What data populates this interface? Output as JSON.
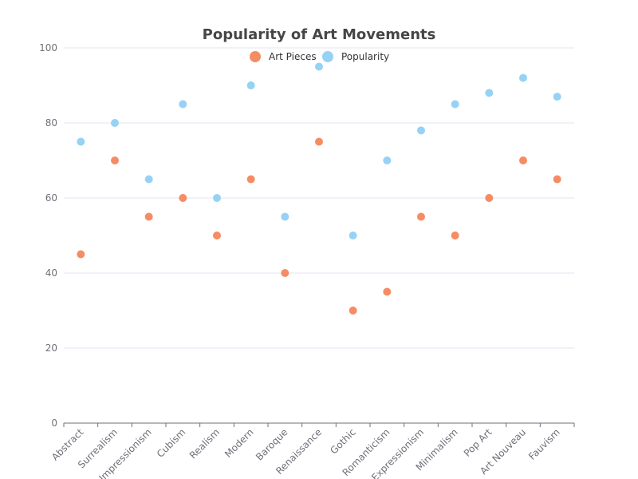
{
  "chart_data": {
    "type": "scatter",
    "title": "Popularity of Art Movements",
    "xlabel": "",
    "ylabel": "",
    "categories": [
      "Abstract",
      "Surrealism",
      "Impressionism",
      "Cubism",
      "Realism",
      "Modern",
      "Baroque",
      "Renaissance",
      "Gothic",
      "Romanticism",
      "Expressionism",
      "Minimalism",
      "Pop Art",
      "Art Nouveau",
      "Fauvism"
    ],
    "ylim": [
      0,
      100
    ],
    "yticks": [
      0,
      20,
      40,
      60,
      80,
      100
    ],
    "grid": true,
    "legend_position": "top-center",
    "series": [
      {
        "name": "Art Pieces",
        "color": "#f58c64",
        "values": [
          45,
          70,
          55,
          60,
          50,
          65,
          40,
          75,
          30,
          35,
          55,
          50,
          60,
          70,
          65
        ]
      },
      {
        "name": "Popularity",
        "color": "#96d2f5",
        "values": [
          75,
          80,
          65,
          85,
          60,
          90,
          55,
          95,
          50,
          70,
          78,
          85,
          88,
          92,
          87
        ]
      }
    ]
  }
}
